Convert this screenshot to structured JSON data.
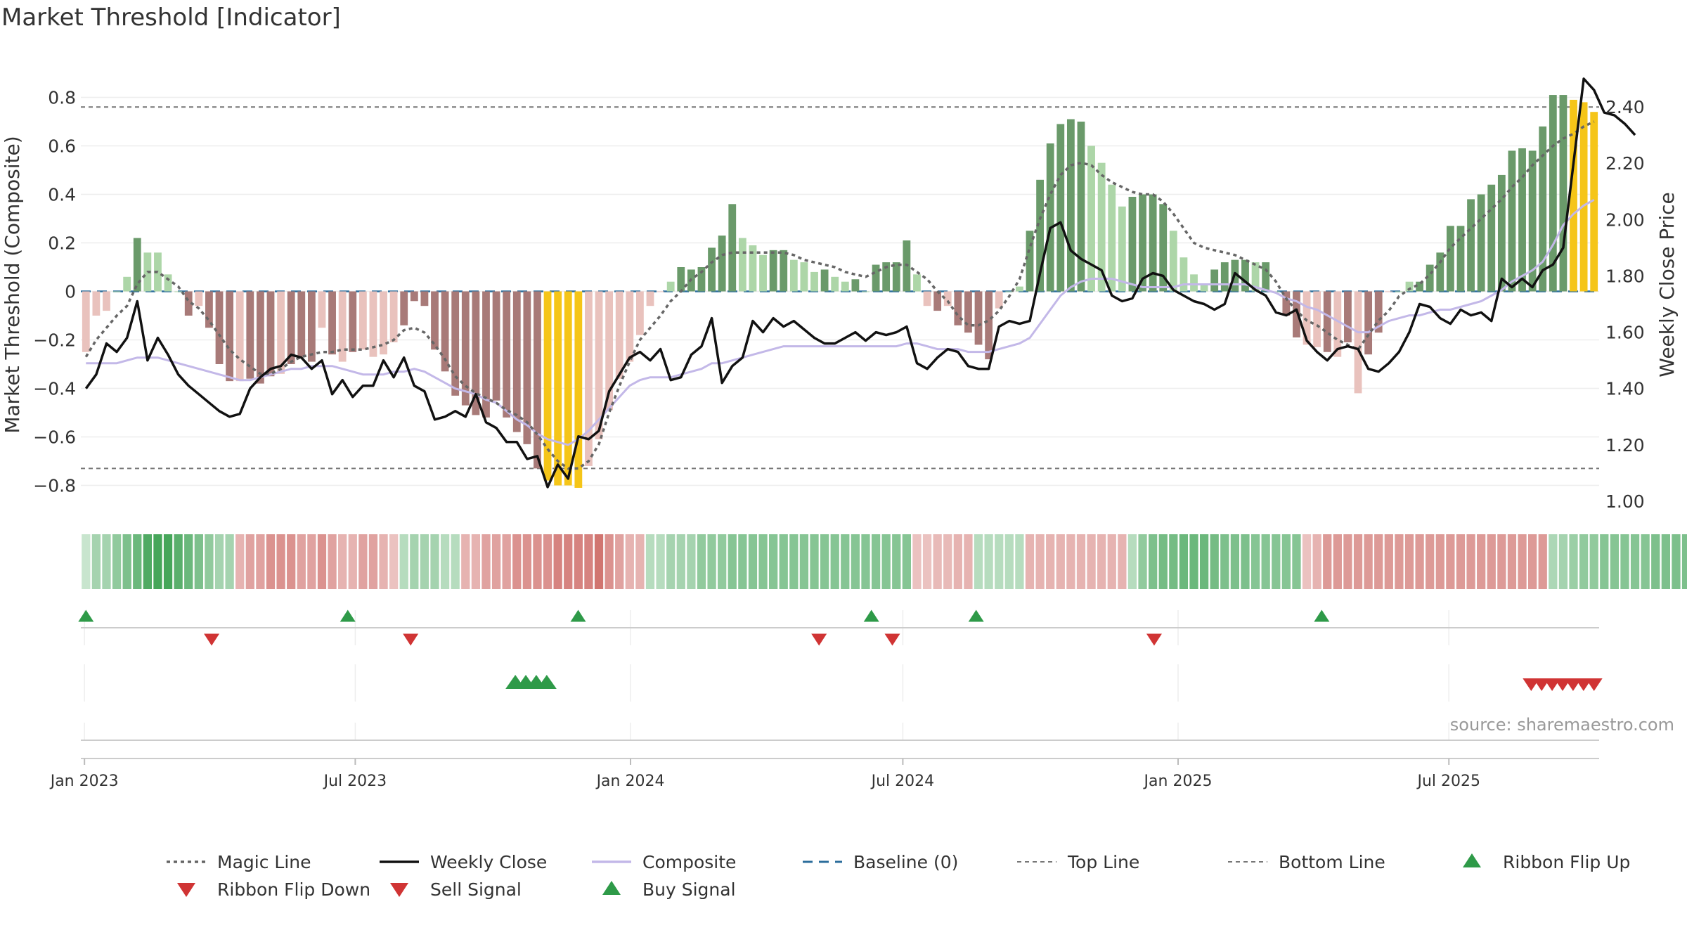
{
  "chart_data": {
    "type": "bar",
    "title": "Market Threshold [Indicator]",
    "ylabel": "Market Threshold (Composite)",
    "ylabel_right": "Weekly Close Price",
    "ylim": [
      -0.9,
      0.9
    ],
    "ylim_right": [
      0.97,
      2.52
    ],
    "yticks": [
      "0.8",
      "0.6",
      "0.4",
      "0.2",
      "0",
      "−0.2",
      "−0.4",
      "−0.6",
      "−0.8"
    ],
    "yticks_right": [
      "2.40",
      "2.20",
      "2.00",
      "1.80",
      "1.60",
      "1.40",
      "1.20",
      "1.00"
    ],
    "xticks": [
      "Jan 2023",
      "Jul 2023",
      "Jan 2024",
      "Jul 2024",
      "Jan 2025",
      "Jul 2025"
    ],
    "x_start": "2023-01-02",
    "x_end": "2025-10-06",
    "top_line": 0.76,
    "bottom_line": -0.73,
    "grid": true,
    "source_note": "source: sharemaestro.com",
    "colors": {
      "strong_up": "#6a9a6a",
      "weak_up": "#add6a8",
      "strong_down": "#a87a78",
      "weak_down": "#e9c2bd",
      "extreme": "#f5c518",
      "magic_line": "#666666",
      "weekly_close": "#111111",
      "composite": "#c3b8e8",
      "baseline": "#2c6e9c",
      "signal_up": "#2e9a48",
      "signal_down": "#d03434"
    },
    "composite_bars": [
      -0.25,
      -0.1,
      -0.08,
      0.0,
      0.06,
      0.22,
      0.16,
      0.16,
      0.07,
      0.0,
      -0.1,
      -0.06,
      -0.15,
      -0.3,
      -0.37,
      -0.37,
      -0.36,
      -0.38,
      -0.35,
      -0.34,
      -0.3,
      -0.27,
      -0.29,
      -0.15,
      -0.26,
      -0.29,
      -0.25,
      -0.24,
      -0.27,
      -0.26,
      -0.21,
      -0.14,
      -0.04,
      -0.06,
      -0.24,
      -0.33,
      -0.43,
      -0.47,
      -0.51,
      -0.52,
      -0.45,
      -0.52,
      -0.58,
      -0.63,
      -0.73,
      -0.78,
      -0.8,
      -0.8,
      -0.81,
      -0.72,
      -0.61,
      -0.49,
      -0.36,
      -0.29,
      -0.18,
      -0.06,
      0.0,
      0.04,
      0.1,
      0.09,
      0.1,
      0.18,
      0.23,
      0.36,
      0.22,
      0.19,
      0.15,
      0.17,
      0.17,
      0.13,
      0.12,
      0.08,
      0.09,
      0.06,
      0.04,
      0.05,
      0.0,
      0.11,
      0.12,
      0.12,
      0.21,
      0.07,
      -0.06,
      -0.08,
      -0.06,
      -0.14,
      -0.17,
      -0.22,
      -0.28,
      -0.07,
      0.0,
      0.02,
      0.25,
      0.46,
      0.61,
      0.69,
      0.71,
      0.7,
      0.6,
      0.53,
      0.44,
      0.35,
      0.39,
      0.4,
      0.4,
      0.36,
      0.25,
      0.14,
      0.07,
      0.03,
      0.09,
      0.12,
      0.13,
      0.13,
      0.12,
      0.12,
      0.0,
      -0.1,
      -0.19,
      -0.22,
      -0.23,
      -0.25,
      -0.27,
      -0.21,
      -0.42,
      -0.26,
      -0.17,
      0.0,
      0.0,
      0.04,
      0.04,
      0.11,
      0.16,
      0.27,
      0.27,
      0.38,
      0.4,
      0.44,
      0.48,
      0.58,
      0.59,
      0.58,
      0.68,
      0.81,
      0.81,
      0.79,
      0.78,
      0.74
    ],
    "bar_class": [
      "wd",
      "wd",
      "wd",
      "wu",
      "wu",
      "su",
      "wu",
      "wu",
      "wu",
      "wu",
      "sd",
      "wd",
      "sd",
      "sd",
      "sd",
      "wd",
      "sd",
      "sd",
      "sd",
      "wd",
      "sd",
      "sd",
      "sd",
      "wd",
      "sd",
      "wd",
      "sd",
      "wd",
      "wd",
      "wd",
      "wd",
      "sd",
      "sd",
      "sd",
      "sd",
      "sd",
      "sd",
      "sd",
      "sd",
      "sd",
      "sd",
      "sd",
      "sd",
      "sd",
      "sd",
      "ex",
      "ex",
      "ex",
      "ex",
      "wd",
      "wd",
      "wd",
      "wd",
      "wd",
      "wd",
      "wd",
      "wd",
      "wu",
      "su",
      "su",
      "su",
      "su",
      "su",
      "su",
      "wu",
      "wu",
      "wu",
      "su",
      "su",
      "wu",
      "wu",
      "wu",
      "su",
      "wu",
      "wu",
      "su",
      "wu",
      "su",
      "su",
      "su",
      "su",
      "wu",
      "wd",
      "sd",
      "wd",
      "sd",
      "sd",
      "sd",
      "sd",
      "wd",
      "wu",
      "wu",
      "su",
      "su",
      "su",
      "su",
      "su",
      "su",
      "wu",
      "wu",
      "wu",
      "wu",
      "su",
      "su",
      "su",
      "su",
      "wu",
      "wu",
      "wu",
      "wu",
      "su",
      "su",
      "su",
      "su",
      "wu",
      "su",
      "wu",
      "sd",
      "sd",
      "wd",
      "wd",
      "sd",
      "wd",
      "sd",
      "wd",
      "sd",
      "sd",
      "wd",
      "wu",
      "wu",
      "su",
      "su",
      "su",
      "su",
      "su",
      "su",
      "su",
      "su",
      "su",
      "su",
      "su",
      "su",
      "su",
      "su",
      "su",
      "ex",
      "ex",
      "ex",
      "ex",
      "ex"
    ],
    "weekly_close": [
      1.4,
      1.45,
      1.56,
      1.53,
      1.58,
      1.71,
      1.5,
      1.58,
      1.52,
      1.45,
      1.41,
      1.38,
      1.35,
      1.32,
      1.3,
      1.31,
      1.4,
      1.44,
      1.47,
      1.48,
      1.52,
      1.51,
      1.47,
      1.5,
      1.38,
      1.43,
      1.37,
      1.41,
      1.41,
      1.5,
      1.44,
      1.51,
      1.41,
      1.39,
      1.29,
      1.3,
      1.32,
      1.3,
      1.38,
      1.28,
      1.26,
      1.21,
      1.21,
      1.15,
      1.16,
      1.05,
      1.13,
      1.08,
      1.23,
      1.22,
      1.25,
      1.39,
      1.45,
      1.51,
      1.53,
      1.5,
      1.54,
      1.43,
      1.44,
      1.52,
      1.55,
      1.65,
      1.42,
      1.48,
      1.51,
      1.64,
      1.6,
      1.65,
      1.62,
      1.64,
      1.61,
      1.58,
      1.56,
      1.56,
      1.58,
      1.6,
      1.57,
      1.6,
      1.59,
      1.6,
      1.62,
      1.49,
      1.47,
      1.51,
      1.54,
      1.53,
      1.48,
      1.47,
      1.47,
      1.62,
      1.64,
      1.63,
      1.64,
      1.81,
      1.97,
      1.99,
      1.89,
      1.86,
      1.84,
      1.82,
      1.73,
      1.71,
      1.72,
      1.79,
      1.81,
      1.8,
      1.75,
      1.73,
      1.71,
      1.7,
      1.68,
      1.7,
      1.81,
      1.78,
      1.75,
      1.73,
      1.67,
      1.66,
      1.68,
      1.57,
      1.53,
      1.5,
      1.54,
      1.55,
      1.54,
      1.47,
      1.46,
      1.49,
      1.53,
      1.6,
      1.7,
      1.69,
      1.65,
      1.63,
      1.68,
      1.66,
      1.67,
      1.64,
      1.79,
      1.76,
      1.79,
      1.76,
      1.82,
      1.84,
      1.9,
      2.2,
      2.5,
      2.46,
      2.38,
      2.37,
      2.34,
      2.3
    ],
    "composite_line": [
      1.49,
      1.49,
      1.49,
      1.49,
      1.5,
      1.51,
      1.51,
      1.51,
      1.5,
      1.49,
      1.48,
      1.47,
      1.46,
      1.45,
      1.44,
      1.43,
      1.43,
      1.44,
      1.45,
      1.46,
      1.47,
      1.47,
      1.48,
      1.48,
      1.48,
      1.47,
      1.46,
      1.45,
      1.45,
      1.45,
      1.46,
      1.46,
      1.47,
      1.46,
      1.44,
      1.42,
      1.4,
      1.39,
      1.38,
      1.36,
      1.35,
      1.32,
      1.29,
      1.27,
      1.24,
      1.22,
      1.21,
      1.2,
      1.22,
      1.25,
      1.29,
      1.33,
      1.37,
      1.41,
      1.43,
      1.44,
      1.44,
      1.44,
      1.45,
      1.46,
      1.47,
      1.49,
      1.49,
      1.5,
      1.51,
      1.52,
      1.53,
      1.54,
      1.55,
      1.55,
      1.55,
      1.55,
      1.55,
      1.55,
      1.55,
      1.55,
      1.55,
      1.55,
      1.55,
      1.55,
      1.56,
      1.56,
      1.55,
      1.54,
      1.54,
      1.54,
      1.53,
      1.53,
      1.53,
      1.54,
      1.55,
      1.56,
      1.58,
      1.63,
      1.68,
      1.73,
      1.76,
      1.78,
      1.79,
      1.79,
      1.79,
      1.78,
      1.77,
      1.76,
      1.76,
      1.76,
      1.76,
      1.77,
      1.77,
      1.77,
      1.77,
      1.77,
      1.77,
      1.77,
      1.76,
      1.75,
      1.74,
      1.72,
      1.71,
      1.69,
      1.68,
      1.66,
      1.64,
      1.62,
      1.6,
      1.6,
      1.62,
      1.64,
      1.65,
      1.66,
      1.66,
      1.67,
      1.68,
      1.68,
      1.69,
      1.7,
      1.71,
      1.73,
      1.75,
      1.78,
      1.8,
      1.82,
      1.85,
      1.91,
      1.98,
      2.02,
      2.05,
      2.07
    ],
    "magic_line": [
      -0.27,
      -0.2,
      -0.15,
      -0.1,
      -0.06,
      0.03,
      0.08,
      0.08,
      0.05,
      0.02,
      -0.04,
      -0.07,
      -0.12,
      -0.18,
      -0.24,
      -0.28,
      -0.31,
      -0.34,
      -0.34,
      -0.32,
      -0.29,
      -0.27,
      -0.26,
      -0.25,
      -0.25,
      -0.24,
      -0.24,
      -0.24,
      -0.23,
      -0.22,
      -0.2,
      -0.16,
      -0.15,
      -0.17,
      -0.22,
      -0.28,
      -0.35,
      -0.39,
      -0.42,
      -0.44,
      -0.46,
      -0.49,
      -0.51,
      -0.54,
      -0.59,
      -0.65,
      -0.7,
      -0.73,
      -0.73,
      -0.7,
      -0.63,
      -0.5,
      -0.39,
      -0.29,
      -0.2,
      -0.15,
      -0.1,
      -0.04,
      0.0,
      0.05,
      0.08,
      0.12,
      0.15,
      0.16,
      0.16,
      0.16,
      0.16,
      0.16,
      0.16,
      0.15,
      0.13,
      0.12,
      0.11,
      0.1,
      0.08,
      0.07,
      0.06,
      0.08,
      0.1,
      0.11,
      0.11,
      0.08,
      0.05,
      0.0,
      -0.04,
      -0.1,
      -0.14,
      -0.14,
      -0.12,
      -0.08,
      -0.02,
      0.05,
      0.18,
      0.3,
      0.4,
      0.48,
      0.52,
      0.53,
      0.52,
      0.48,
      0.45,
      0.43,
      0.41,
      0.4,
      0.4,
      0.37,
      0.32,
      0.26,
      0.2,
      0.18,
      0.17,
      0.16,
      0.15,
      0.13,
      0.11,
      0.09,
      0.04,
      -0.03,
      -0.08,
      -0.12,
      -0.14,
      -0.17,
      -0.2,
      -0.22,
      -0.24,
      -0.18,
      -0.12,
      -0.08,
      -0.02,
      0.01,
      0.03,
      0.07,
      0.12,
      0.18,
      0.22,
      0.26,
      0.3,
      0.34,
      0.38,
      0.43,
      0.47,
      0.52,
      0.56,
      0.6,
      0.63,
      0.65,
      0.68,
      0.7
    ],
    "ribbon": [
      0.1,
      0.3,
      0.3,
      0.4,
      0.5,
      0.6,
      0.75,
      0.8,
      0.8,
      0.7,
      0.6,
      0.5,
      0.4,
      0.3,
      0.3,
      -0.3,
      -0.4,
      -0.4,
      -0.5,
      -0.5,
      -0.5,
      -0.4,
      -0.4,
      -0.5,
      -0.4,
      -0.3,
      -0.3,
      -0.4,
      -0.4,
      -0.3,
      -0.2,
      0.2,
      0.3,
      0.3,
      0.3,
      0.2,
      0.2,
      -0.3,
      -0.3,
      -0.4,
      -0.4,
      -0.4,
      -0.5,
      -0.5,
      -0.5,
      -0.5,
      -0.6,
      -0.6,
      -0.6,
      -0.6,
      -0.7,
      -0.5,
      -0.4,
      -0.3,
      -0.3,
      0.2,
      0.2,
      0.3,
      0.3,
      0.3,
      0.4,
      0.4,
      0.4,
      0.45,
      0.45,
      0.45,
      0.45,
      0.45,
      0.45,
      0.45,
      0.45,
      0.45,
      0.45,
      0.45,
      0.45,
      0.45,
      0.45,
      0.45,
      0.45,
      0.45,
      0.45,
      -0.2,
      -0.2,
      -0.25,
      -0.25,
      -0.3,
      -0.3,
      0.2,
      0.2,
      0.2,
      0.2,
      0.2,
      -0.3,
      -0.3,
      -0.3,
      -0.3,
      -0.3,
      -0.3,
      -0.3,
      -0.3,
      -0.3,
      -0.3,
      0.2,
      0.4,
      0.5,
      0.55,
      0.55,
      0.6,
      0.6,
      0.6,
      0.55,
      0.5,
      0.5,
      0.5,
      0.45,
      0.45,
      0.45,
      0.45,
      0.45,
      -0.2,
      -0.3,
      -0.45,
      -0.45,
      -0.45,
      -0.45,
      -0.45,
      -0.45,
      -0.45,
      -0.45,
      -0.45,
      -0.45,
      -0.45,
      -0.45,
      -0.45,
      -0.45,
      -0.45,
      -0.45,
      -0.45,
      -0.45,
      -0.45,
      -0.45,
      -0.45,
      -0.45,
      0.25,
      0.3,
      0.35,
      0.4,
      0.4,
      0.45,
      0.45,
      0.45,
      0.45,
      0.45,
      0.5,
      0.5,
      0.5,
      0.5,
      0.5,
      0.5,
      0.5,
      0.5,
      0.5,
      0.5
    ],
    "ribbon_flip_up": [
      "2023-01-02",
      "2023-06-26",
      "2023-11-27",
      "2024-06-10",
      "2024-08-19",
      "2025-04-07"
    ],
    "ribbon_flip_down": [
      "2023-03-27",
      "2023-08-07",
      "2024-05-06",
      "2024-06-24",
      "2024-12-16"
    ],
    "buy_signal": [
      "2023-10-16",
      "2023-10-23",
      "2023-10-30",
      "2023-11-06"
    ],
    "sell_signal": [
      "2025-08-25",
      "2025-09-01",
      "2025-09-08",
      "2025-09-15",
      "2025-09-22",
      "2025-09-29",
      "2025-10-06"
    ],
    "legend": [
      {
        "label": "Magic Line",
        "kind": "dotted"
      },
      {
        "label": "Weekly Close",
        "kind": "solid"
      },
      {
        "label": "Composite",
        "kind": "composite"
      },
      {
        "label": "Baseline (0)",
        "kind": "dashed"
      },
      {
        "label": "Top Line",
        "kind": "thin-dashed"
      },
      {
        "label": "Bottom Line",
        "kind": "thin-dashed"
      },
      {
        "label": "Ribbon Flip Up",
        "kind": "tri-up-green"
      },
      {
        "label": "Ribbon Flip Down",
        "kind": "tri-down-red"
      },
      {
        "label": "Sell Signal",
        "kind": "tri-down-red"
      },
      {
        "label": "Buy Signal",
        "kind": "tri-up-green"
      }
    ]
  }
}
